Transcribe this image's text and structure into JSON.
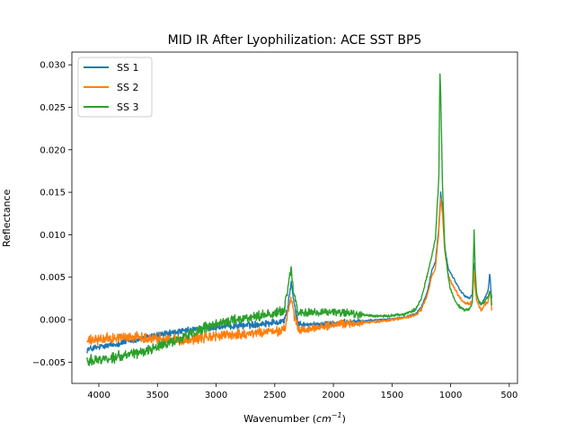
{
  "chart_data": {
    "type": "line",
    "title": "MID IR After Lyophilization: ACE SST BP5",
    "xlabel_main": "Wavenumber (",
    "xlabel_cm": "cm",
    "xlabel_sup": "−1",
    "xlabel_close": ")",
    "ylabel": "Reflectance",
    "xlim": [
      4230,
      430
    ],
    "ylim": [
      -0.0075,
      0.0315
    ],
    "x_reversed": true,
    "grid": false,
    "legend_position": "top-left",
    "x_ticks": [
      4000,
      3500,
      3000,
      2500,
      2000,
      1500,
      1000,
      500
    ],
    "x_tick_labels": [
      "4000",
      "3500",
      "3000",
      "2500",
      "2000",
      "1500",
      "1000",
      "500"
    ],
    "y_ticks": [
      -0.005,
      0.0,
      0.005,
      0.01,
      0.015,
      0.02,
      0.025,
      0.03
    ],
    "y_tick_labels": [
      "−0.005",
      "0.000",
      "0.005",
      "0.010",
      "0.015",
      "0.020",
      "0.025",
      "0.030"
    ],
    "series": [
      {
        "name": "SS 1",
        "color": "#1f77b4",
        "x": [
          4100,
          3900,
          3700,
          3500,
          3300,
          3100,
          2900,
          2700,
          2500,
          2420,
          2390,
          2360,
          2340,
          2300,
          2200,
          2100,
          2000,
          1900,
          1800,
          1700,
          1600,
          1500,
          1400,
          1300,
          1250,
          1200,
          1160,
          1130,
          1100,
          1085,
          1070,
          1050,
          1020,
          1000,
          960,
          920,
          880,
          840,
          815,
          800,
          790,
          780,
          760,
          740,
          720,
          700,
          680,
          666,
          655,
          650
        ],
        "y": [
          -0.0035,
          -0.003,
          -0.0024,
          -0.0018,
          -0.0014,
          -0.001,
          -0.0008,
          -0.0006,
          -0.0003,
          -0.0001,
          0.0012,
          0.0045,
          0.0022,
          -0.0005,
          -0.0006,
          -0.0005,
          -0.0004,
          -0.0003,
          -0.0002,
          -0.0001,
          0.0,
          0.0001,
          0.0003,
          0.0007,
          0.0014,
          0.0032,
          0.0058,
          0.0068,
          0.011,
          0.0149,
          0.013,
          0.0085,
          0.006,
          0.0055,
          0.0045,
          0.0035,
          0.0028,
          0.0025,
          0.003,
          0.0065,
          0.004,
          0.003,
          0.0022,
          0.0018,
          0.0022,
          0.0028,
          0.0035,
          0.0055,
          0.0032,
          0.0025
        ],
        "noise": 0.0006
      },
      {
        "name": "SS 2",
        "color": "#ff7f0e",
        "x": [
          4100,
          3900,
          3700,
          3500,
          3300,
          3100,
          2900,
          2700,
          2500,
          2420,
          2390,
          2360,
          2340,
          2300,
          2200,
          2100,
          2000,
          1900,
          1800,
          1700,
          1600,
          1500,
          1400,
          1300,
          1250,
          1200,
          1160,
          1130,
          1100,
          1085,
          1070,
          1050,
          1020,
          1000,
          960,
          920,
          880,
          840,
          815,
          800,
          790,
          780,
          760,
          740,
          720,
          700,
          680,
          666,
          655,
          650
        ],
        "y": [
          -0.0025,
          -0.0022,
          -0.002,
          -0.0022,
          -0.0024,
          -0.0021,
          -0.0018,
          -0.0016,
          -0.0014,
          -0.0012,
          0.0005,
          0.0025,
          0.0008,
          -0.0012,
          -0.0012,
          -0.0008,
          -0.0006,
          -0.0005,
          -0.0004,
          -0.0003,
          -0.0002,
          0.0,
          0.0002,
          0.0005,
          0.0012,
          0.0028,
          0.0052,
          0.006,
          0.0105,
          0.0142,
          0.0125,
          0.008,
          0.0052,
          0.0045,
          0.0035,
          0.0025,
          0.002,
          0.0018,
          0.0022,
          0.0058,
          0.0035,
          0.0024,
          0.0016,
          0.0012,
          0.0015,
          0.0018,
          0.0022,
          0.0035,
          0.0022,
          0.0012
        ],
        "noise": 0.0009
      },
      {
        "name": "SS 3",
        "color": "#2ca02c",
        "x": [
          4100,
          3900,
          3700,
          3500,
          3300,
          3100,
          2900,
          2700,
          2500,
          2420,
          2390,
          2360,
          2340,
          2300,
          2200,
          2100,
          2000,
          1900,
          1800,
          1700,
          1600,
          1500,
          1400,
          1300,
          1250,
          1200,
          1160,
          1130,
          1100,
          1092,
          1085,
          1070,
          1050,
          1020,
          1000,
          960,
          920,
          880,
          840,
          815,
          800,
          790,
          780,
          760,
          740,
          720,
          700,
          680,
          666,
          655,
          650
        ],
        "y": [
          -0.0048,
          -0.0045,
          -0.004,
          -0.0032,
          -0.0022,
          -0.001,
          -0.0002,
          0.0003,
          0.0008,
          0.0011,
          0.0035,
          0.006,
          0.0032,
          0.0008,
          0.0009,
          0.0009,
          0.0009,
          0.0008,
          0.0006,
          0.0005,
          0.0004,
          0.0005,
          0.0006,
          0.0012,
          0.0025,
          0.0052,
          0.0075,
          0.0095,
          0.017,
          0.0294,
          0.0265,
          0.016,
          0.0085,
          0.005,
          0.0035,
          0.0022,
          0.0015,
          0.0012,
          0.0012,
          0.002,
          0.0105,
          0.0055,
          0.0032,
          0.0022,
          0.0018,
          0.002,
          0.0023,
          0.0026,
          0.0035,
          0.0025,
          0.0018
        ],
        "noise": 0.0009
      }
    ]
  }
}
